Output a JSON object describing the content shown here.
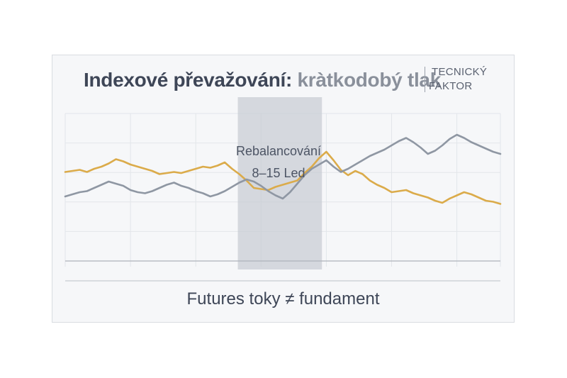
{
  "header": {
    "title_main": "Indexové převažování:",
    "title_sub": "kràtkodobý tlak",
    "tag_line1": "TECNICKÝ",
    "tag_line2": "FAKTOR"
  },
  "annotation": {
    "line1": "Rebalancování",
    "line2": "8–15 Led"
  },
  "footer": {
    "text": "Futures toky ≠ fundament"
  },
  "chart_data": {
    "type": "line",
    "title": "Indexové převažování: kràtkodobý tlak",
    "xlabel": "",
    "ylabel": "",
    "grid": true,
    "legend": "none",
    "x": [
      0,
      1,
      2,
      3,
      4,
      5,
      6,
      7,
      8,
      9,
      10,
      11,
      12,
      13,
      14,
      15,
      16,
      17,
      18,
      19,
      20,
      21,
      22,
      23,
      24,
      25,
      26,
      27,
      28,
      29,
      30,
      31,
      32,
      33,
      34,
      35,
      36,
      37,
      38,
      39,
      40,
      41,
      42,
      43,
      44,
      45,
      46,
      47,
      48,
      49,
      50,
      51,
      52,
      53,
      54,
      55,
      56,
      57,
      58,
      59,
      60
    ],
    "xlim": [
      0,
      60
    ],
    "ylim": [
      0,
      100
    ],
    "highlight_band": {
      "x_start": 23.8,
      "x_end": 35.4
    },
    "series": [
      {
        "color": "#dbab4a",
        "values": [
          55,
          56,
          57,
          55,
          58,
          60,
          63,
          67,
          65,
          62,
          60,
          58,
          56,
          53,
          54,
          55,
          54,
          56,
          58,
          60,
          59,
          61,
          64,
          58,
          53,
          47,
          40,
          39,
          38,
          41,
          43,
          45,
          47,
          54,
          60,
          68,
          74,
          66,
          57,
          52,
          56,
          53,
          47,
          43,
          40,
          36,
          37,
          38,
          35,
          33,
          31,
          28,
          26,
          30,
          33,
          36,
          34,
          31,
          28,
          27,
          25
        ]
      },
      {
        "color": "#8f97a3",
        "values": [
          32,
          34,
          36,
          37,
          40,
          43,
          46,
          44,
          42,
          38,
          36,
          35,
          37,
          40,
          43,
          45,
          42,
          40,
          37,
          35,
          32,
          34,
          37,
          41,
          45,
          48,
          46,
          42,
          37,
          33,
          30,
          36,
          44,
          52,
          58,
          62,
          66,
          60,
          55,
          58,
          62,
          66,
          70,
          73,
          76,
          80,
          84,
          87,
          83,
          78,
          72,
          75,
          80,
          86,
          90,
          87,
          83,
          80,
          77,
          74,
          72
        ]
      }
    ]
  }
}
